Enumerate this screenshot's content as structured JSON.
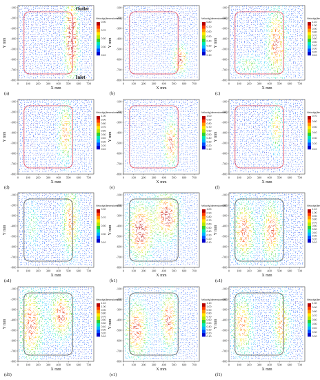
{
  "figure": {
    "annotations": {
      "outlet": "Outlet",
      "inlet": "Inlet"
    },
    "colors": {
      "path_red": "#e8475a",
      "path_dark": "#555555",
      "arrow_fill": "#ffffff"
    },
    "panels": [
      {
        "label": "(a)",
        "outline": "red",
        "cb_title": "Velocity(dimensionless)",
        "cb_ticks": [
          "0.90",
          "0.70",
          "0.50",
          "0.30",
          "0.10"
        ]
      },
      {
        "label": "(b)",
        "outline": "red",
        "cb_title": "Velocity(dimensionless)",
        "cb_ticks": [
          "0.80",
          "0.70",
          "0.60",
          "0.50",
          "0.40",
          "0.30",
          "0.20",
          "0.10"
        ]
      },
      {
        "label": "(c)",
        "outline": "red",
        "cb_title": "Velocity(dimensionless)",
        "cb_ticks": [
          "1.10",
          "1.00",
          "0.90",
          "0.80",
          "0.70",
          "0.60",
          "0.50",
          "0.40",
          "0.30",
          "0.20",
          "0.10"
        ]
      },
      {
        "label": "(d)",
        "outline": "red",
        "cb_title": "Velocity(dimensionless)",
        "cb_ticks": [
          "1.00",
          "0.90",
          "0.80",
          "0.70",
          "0.60",
          "0.50",
          "0.40",
          "0.30",
          "0.20",
          "0.10"
        ]
      },
      {
        "label": "(e)",
        "outline": "red",
        "cb_title": "Velocity(dimensionless)",
        "cb_ticks": [
          "1.00",
          "0.90",
          "0.80",
          "0.70",
          "0.60",
          "0.50",
          "0.40",
          "0.30",
          "0.20",
          "0.10"
        ]
      },
      {
        "label": "(f)",
        "outline": "red",
        "cb_title": "Velocity(dimensionless)",
        "cb_ticks": [
          "0.70",
          "0.60",
          "0.50",
          "0.40",
          "0.30",
          "0.20",
          "0.10"
        ]
      },
      {
        "label": "(a1)",
        "outline": "dark",
        "cb_title": "Velocity(dimensionless)",
        "cb_ticks": [
          "0.90",
          "0.70",
          "0.50",
          "0.30",
          "0.10"
        ]
      },
      {
        "label": "(b1)",
        "outline": "dark",
        "cb_title": "Velocity(dimensionless)",
        "cb_ticks": [
          "1.00",
          "0.90",
          "0.80",
          "0.70",
          "0.60",
          "0.50",
          "0.40",
          "0.30",
          "0.20",
          "0.10"
        ]
      },
      {
        "label": "(c1)",
        "outline": "dark",
        "cb_title": "Velocity(dimensionless)",
        "cb_ticks": [
          "1.10",
          "1.00",
          "0.90",
          "0.80",
          "0.70",
          "0.60",
          "0.50",
          "0.40",
          "0.30",
          "0.20",
          "0.10"
        ]
      },
      {
        "label": "(d1)",
        "outline": "dark",
        "cb_title": "Velocity(dimensionless)",
        "cb_ticks": [
          "1.10",
          "1.00",
          "0.90",
          "0.80",
          "0.70",
          "0.60",
          "0.50",
          "0.40",
          "0.30",
          "0.20",
          "0.10"
        ]
      },
      {
        "label": "(e1)",
        "outline": "dark",
        "cb_title": "Velocity(dimensionless)",
        "cb_ticks": [
          "1.10",
          "1.00",
          "0.90",
          "0.80",
          "0.70",
          "0.60",
          "0.50",
          "0.40",
          "0.30",
          "0.20",
          "0.10"
        ]
      },
      {
        "label": "(f1)",
        "outline": "dark",
        "cb_title": "Velocity(dimensionless)",
        "cb_ticks": [
          "1.00",
          "0.90",
          "0.80",
          "0.70",
          "0.60",
          "0.50",
          "0.40",
          "0.30",
          "0.20"
        ]
      }
    ]
  },
  "chart_data": {
    "type": "vector-field",
    "xlabel": "X mm",
    "ylabel": "Y mm",
    "x_ticks": [
      "0",
      "100",
      "200",
      "300",
      "400",
      "500",
      "600",
      "700"
    ],
    "y_ticks": [
      "-100",
      "-200",
      "-300",
      "-400",
      "-500",
      "-600",
      "-700",
      "-800"
    ],
    "xlim": [
      0,
      750
    ],
    "ylim": [
      -800,
      -80
    ],
    "colorbar_title": "Velocity(dimensionless)",
    "colormap": [
      "#0000c8",
      "#0050ff",
      "#00b4ff",
      "#00e6b4",
      "#30d030",
      "#b4e600",
      "#ffe600",
      "#ff9600",
      "#ff3c00",
      "#b40000"
    ]
  }
}
